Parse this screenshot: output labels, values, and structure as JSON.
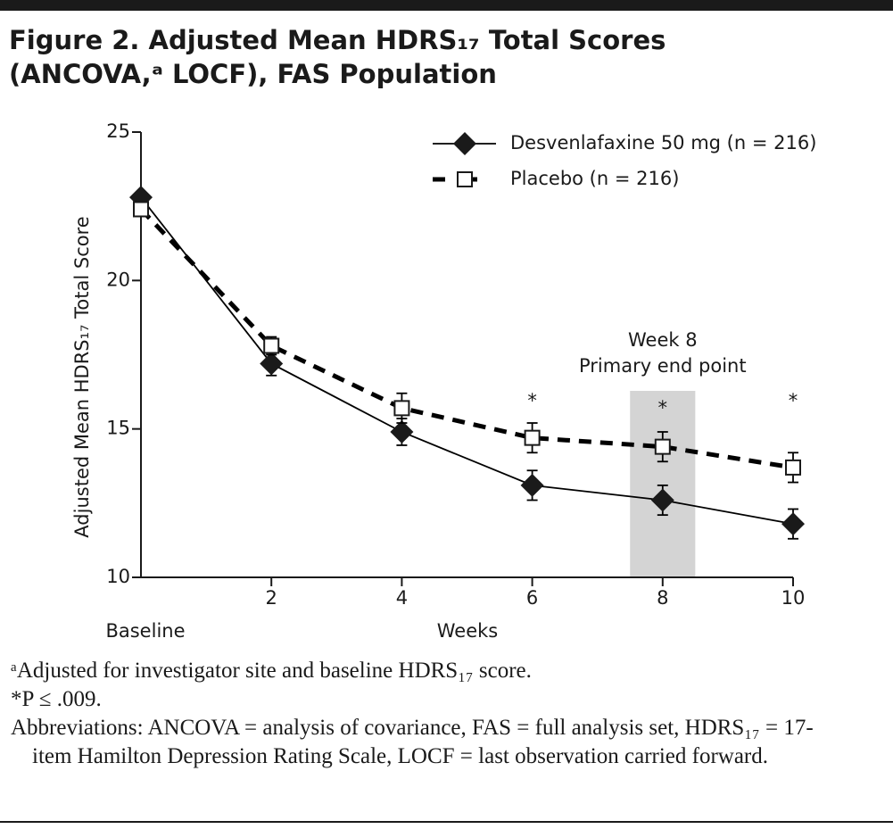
{
  "chart_data": {
    "type": "line",
    "title": [
      "Figure 2. Adjusted Mean HDRS₁₇ Total Scores",
      "(ANCOVA,ᵃ LOCF), FAS Population"
    ],
    "x_label": "Weeks",
    "y_label": "Adjusted Mean HDRS₁₇ Total Score",
    "x": [
      0,
      2,
      4,
      6,
      8,
      10
    ],
    "series": [
      {
        "name": "Desvenlafaxine 50 mg (n = 216)",
        "color": "#000000",
        "marker": "diamond",
        "dashed": false,
        "values": [
          22.8,
          17.2,
          14.9,
          13.1,
          12.6,
          11.8
        ],
        "errors": [
          null,
          0.4,
          0.45,
          0.5,
          0.5,
          0.5
        ]
      },
      {
        "name": "Placebo (n = 216)",
        "color": "#000000",
        "marker": "square",
        "dashed": true,
        "values": [
          22.4,
          17.8,
          15.7,
          14.7,
          14.4,
          13.7
        ],
        "errors": [
          null,
          0.3,
          0.5,
          0.5,
          0.5,
          0.5
        ]
      }
    ],
    "xlim": [
      0,
      10
    ],
    "xticks": [
      {
        "value": 0,
        "label": "Baseline"
      },
      2,
      4,
      6,
      8,
      10
    ],
    "ylim": [
      10,
      25
    ],
    "yticks": [
      10,
      15,
      20,
      25
    ],
    "legend": "top-right",
    "highlight": {
      "x": [
        7.5,
        8.5
      ],
      "label": [
        "Week 8",
        "Primary end point"
      ],
      "color": "#d4d4d4"
    },
    "annotations": [
      {
        "x": 6,
        "text": "*"
      },
      {
        "x": 8,
        "text": "*"
      },
      {
        "x": 10,
        "text": "*"
      }
    ],
    "footnotes": [
      "ᵃAdjusted for investigator site and baseline HDRS₁₇ score.",
      "*P ≤ .009.",
      "Abbreviations: ANCOVA = analysis of covariance, FAS = full analysis set, HDRS₁₇ = 17-item Hamilton Depression Rating Scale, LOCF = last observation carried forward."
    ]
  }
}
